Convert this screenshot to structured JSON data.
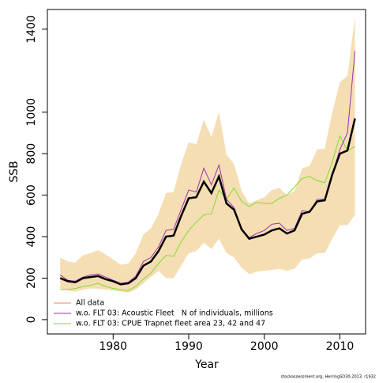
{
  "chart_data": {
    "type": "line",
    "xlabel": "Year",
    "ylabel": "SSB",
    "footnote": "stockassessment.org, HerringSD30-2013, r1932",
    "x": [
      1973,
      1974,
      1975,
      1976,
      1977,
      1978,
      1979,
      1980,
      1981,
      1982,
      1983,
      1984,
      1985,
      1986,
      1987,
      1988,
      1989,
      1990,
      1991,
      1992,
      1993,
      1994,
      1995,
      1996,
      1997,
      1998,
      1999,
      2000,
      2001,
      2002,
      2003,
      2004,
      2005,
      2006,
      2007,
      2008,
      2009,
      2010,
      2011,
      2012
    ],
    "band": {
      "color": "#f5deb3",
      "lower": [
        150,
        140,
        135,
        145,
        150,
        150,
        145,
        140,
        135,
        130,
        145,
        175,
        205,
        235,
        200,
        200,
        260,
        320,
        330,
        370,
        340,
        390,
        320,
        300,
        250,
        220,
        230,
        235,
        240,
        245,
        235,
        245,
        290,
        295,
        320,
        320,
        390,
        455,
        455,
        505
      ],
      "upper": [
        300,
        280,
        275,
        310,
        320,
        335,
        315,
        290,
        265,
        270,
        320,
        410,
        440,
        510,
        610,
        615,
        750,
        855,
        845,
        965,
        880,
        1000,
        795,
        750,
        620,
        560,
        575,
        590,
        625,
        635,
        600,
        620,
        730,
        740,
        820,
        825,
        1000,
        1145,
        1175,
        1460
      ]
    },
    "series": [
      {
        "name": "All data",
        "color": "#000000",
        "legend_color": "#f08070",
        "values": [
          200,
          185,
          180,
          200,
          205,
          210,
          195,
          185,
          170,
          175,
          200,
          260,
          280,
          330,
          400,
          405,
          500,
          585,
          590,
          665,
          610,
          690,
          560,
          530,
          435,
          390,
          400,
          410,
          430,
          440,
          415,
          430,
          510,
          520,
          570,
          575,
          700,
          800,
          815,
          970
        ]
      },
      {
        "name": "w.o. FLT 03: Acoustic Fleet   N of individuals, millions",
        "color": "#a030b0",
        "values": [
          215,
          190,
          185,
          205,
          215,
          220,
          205,
          190,
          175,
          180,
          210,
          280,
          300,
          350,
          430,
          435,
          530,
          625,
          615,
          730,
          650,
          745,
          580,
          540,
          440,
          395,
          415,
          430,
          460,
          465,
          430,
          440,
          525,
          520,
          580,
          580,
          700,
          820,
          900,
          1295
        ]
      },
      {
        "name": "w.o. FLT 03: CPUE Trapnet fleet area 23, 42 and 47",
        "color": "#80dd30",
        "values": [
          145,
          145,
          150,
          160,
          165,
          175,
          160,
          150,
          145,
          140,
          160,
          195,
          225,
          270,
          310,
          305,
          375,
          430,
          470,
          505,
          510,
          625,
          580,
          635,
          570,
          545,
          565,
          560,
          560,
          585,
          600,
          640,
          680,
          690,
          670,
          660,
          760,
          885,
          815,
          835
        ]
      }
    ],
    "xlim": [
      1971.3,
      2013.4
    ],
    "xticks": [
      1980,
      1990,
      2000,
      2010
    ],
    "ylim": [
      -69,
      1495
    ],
    "yticks": [
      0,
      200,
      400,
      600,
      800,
      1000,
      1400
    ],
    "legend": "bottom-left"
  }
}
